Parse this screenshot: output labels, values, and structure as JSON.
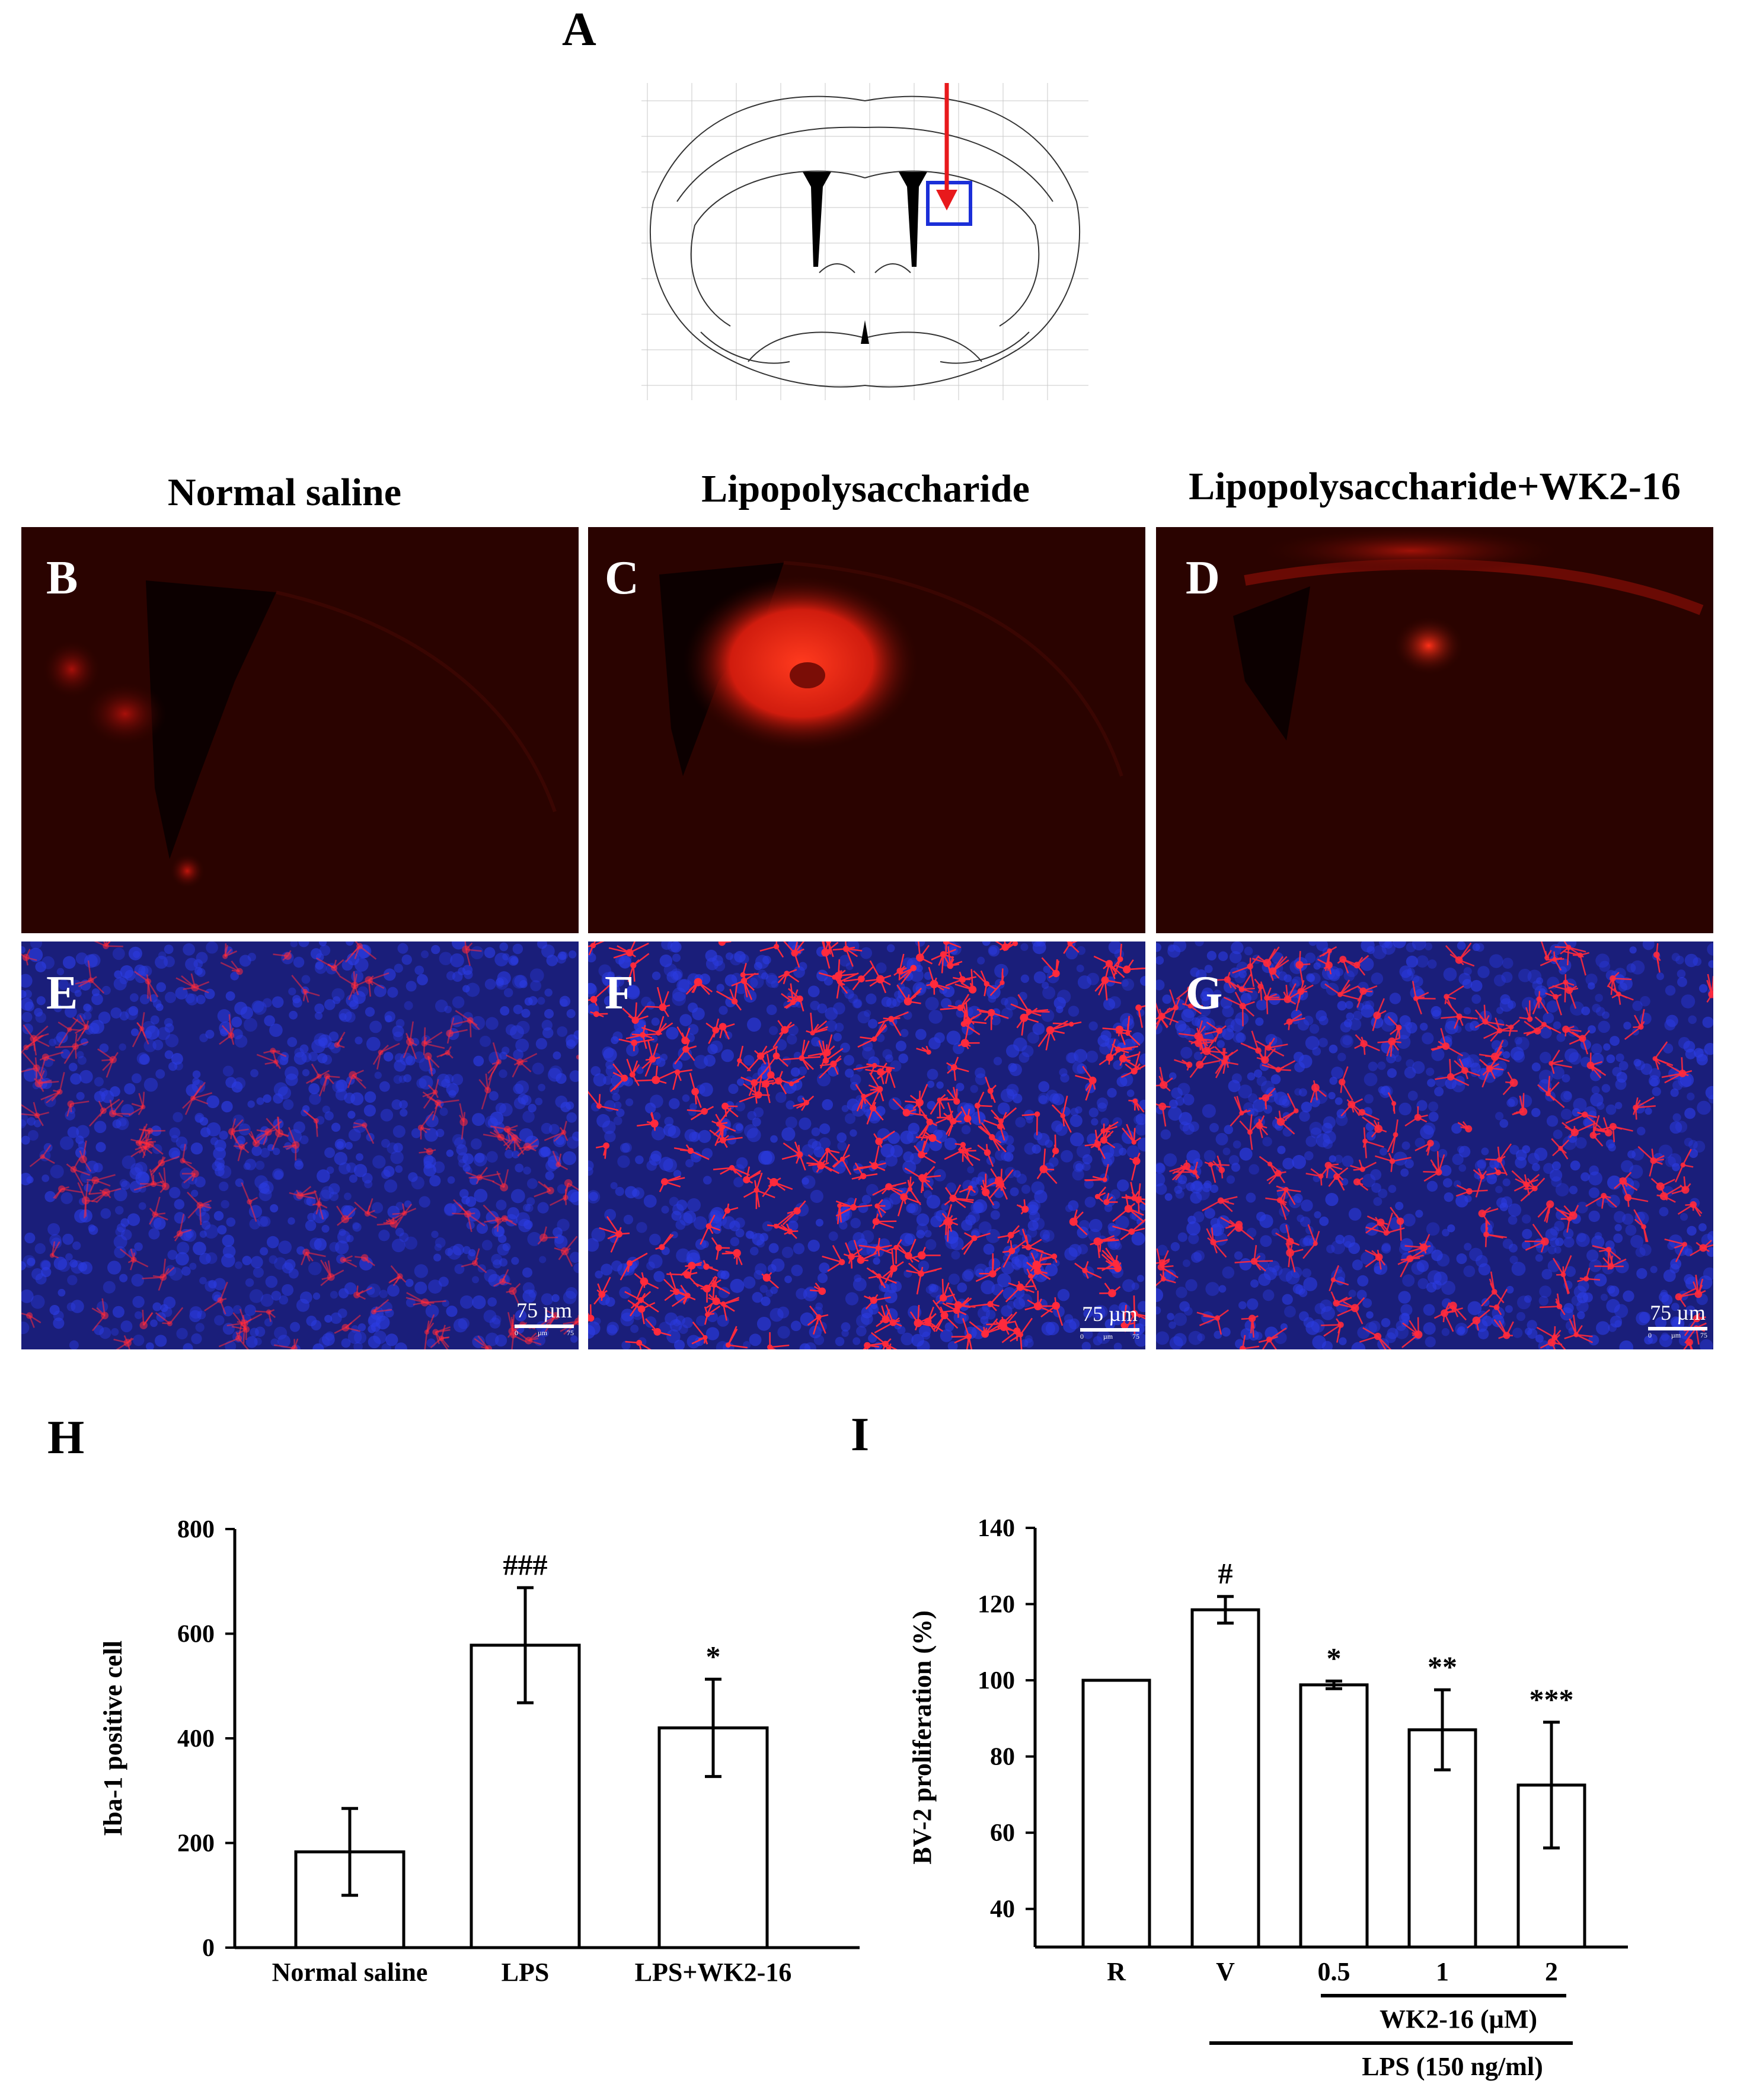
{
  "panel_labels": {
    "A": "A",
    "B": "B",
    "C": "C",
    "D": "D",
    "E": "E",
    "F": "F",
    "G": "G",
    "H": "H",
    "I": "I"
  },
  "column_titles": [
    "Normal saline",
    "Lipopolysaccharide",
    "Lipopolysaccharide+WK2-16"
  ],
  "scale_bar": {
    "label": "75 µm",
    "ticks": [
      "0",
      "µm",
      "75"
    ]
  },
  "colors": {
    "arrow": "#e8191c",
    "roi_box": "#1b2fd8",
    "fluor_bg": "#2a0300",
    "iba_red": "#ff2a3c",
    "dapi_blue": "#2430c8"
  },
  "chart_data": [
    {
      "id": "H",
      "type": "bar",
      "ylabel": "Iba-1 positive cell",
      "categories": [
        "Normal saline",
        "LPS",
        "LPS+WK2-16"
      ],
      "values": [
        183,
        578,
        420
      ],
      "errors": [
        83,
        110,
        93
      ],
      "annotations": [
        "",
        "###",
        "*"
      ],
      "ylim": [
        0,
        800
      ],
      "yticks": [
        0,
        200,
        400,
        600,
        800
      ],
      "grid": false
    },
    {
      "id": "I",
      "type": "bar",
      "ylabel": "BV-2 proliferation (%)",
      "categories": [
        "R",
        "V",
        "0.5",
        "1",
        "2"
      ],
      "values": [
        100,
        118.5,
        98.8,
        87,
        72.5
      ],
      "errors": [
        0,
        3.5,
        1,
        10.5,
        16.5
      ],
      "annotations": [
        "",
        "#",
        "*",
        "**",
        "***"
      ],
      "ylim": [
        30,
        140
      ],
      "yticks": [
        40,
        60,
        80,
        100,
        120,
        140
      ],
      "group_labels": [
        {
          "label": "WK2-16 (µM)",
          "span": [
            "0.5",
            "2"
          ]
        },
        {
          "label": "LPS (150 ng/ml)",
          "span": [
            "V",
            "2"
          ]
        }
      ],
      "grid": false
    }
  ]
}
